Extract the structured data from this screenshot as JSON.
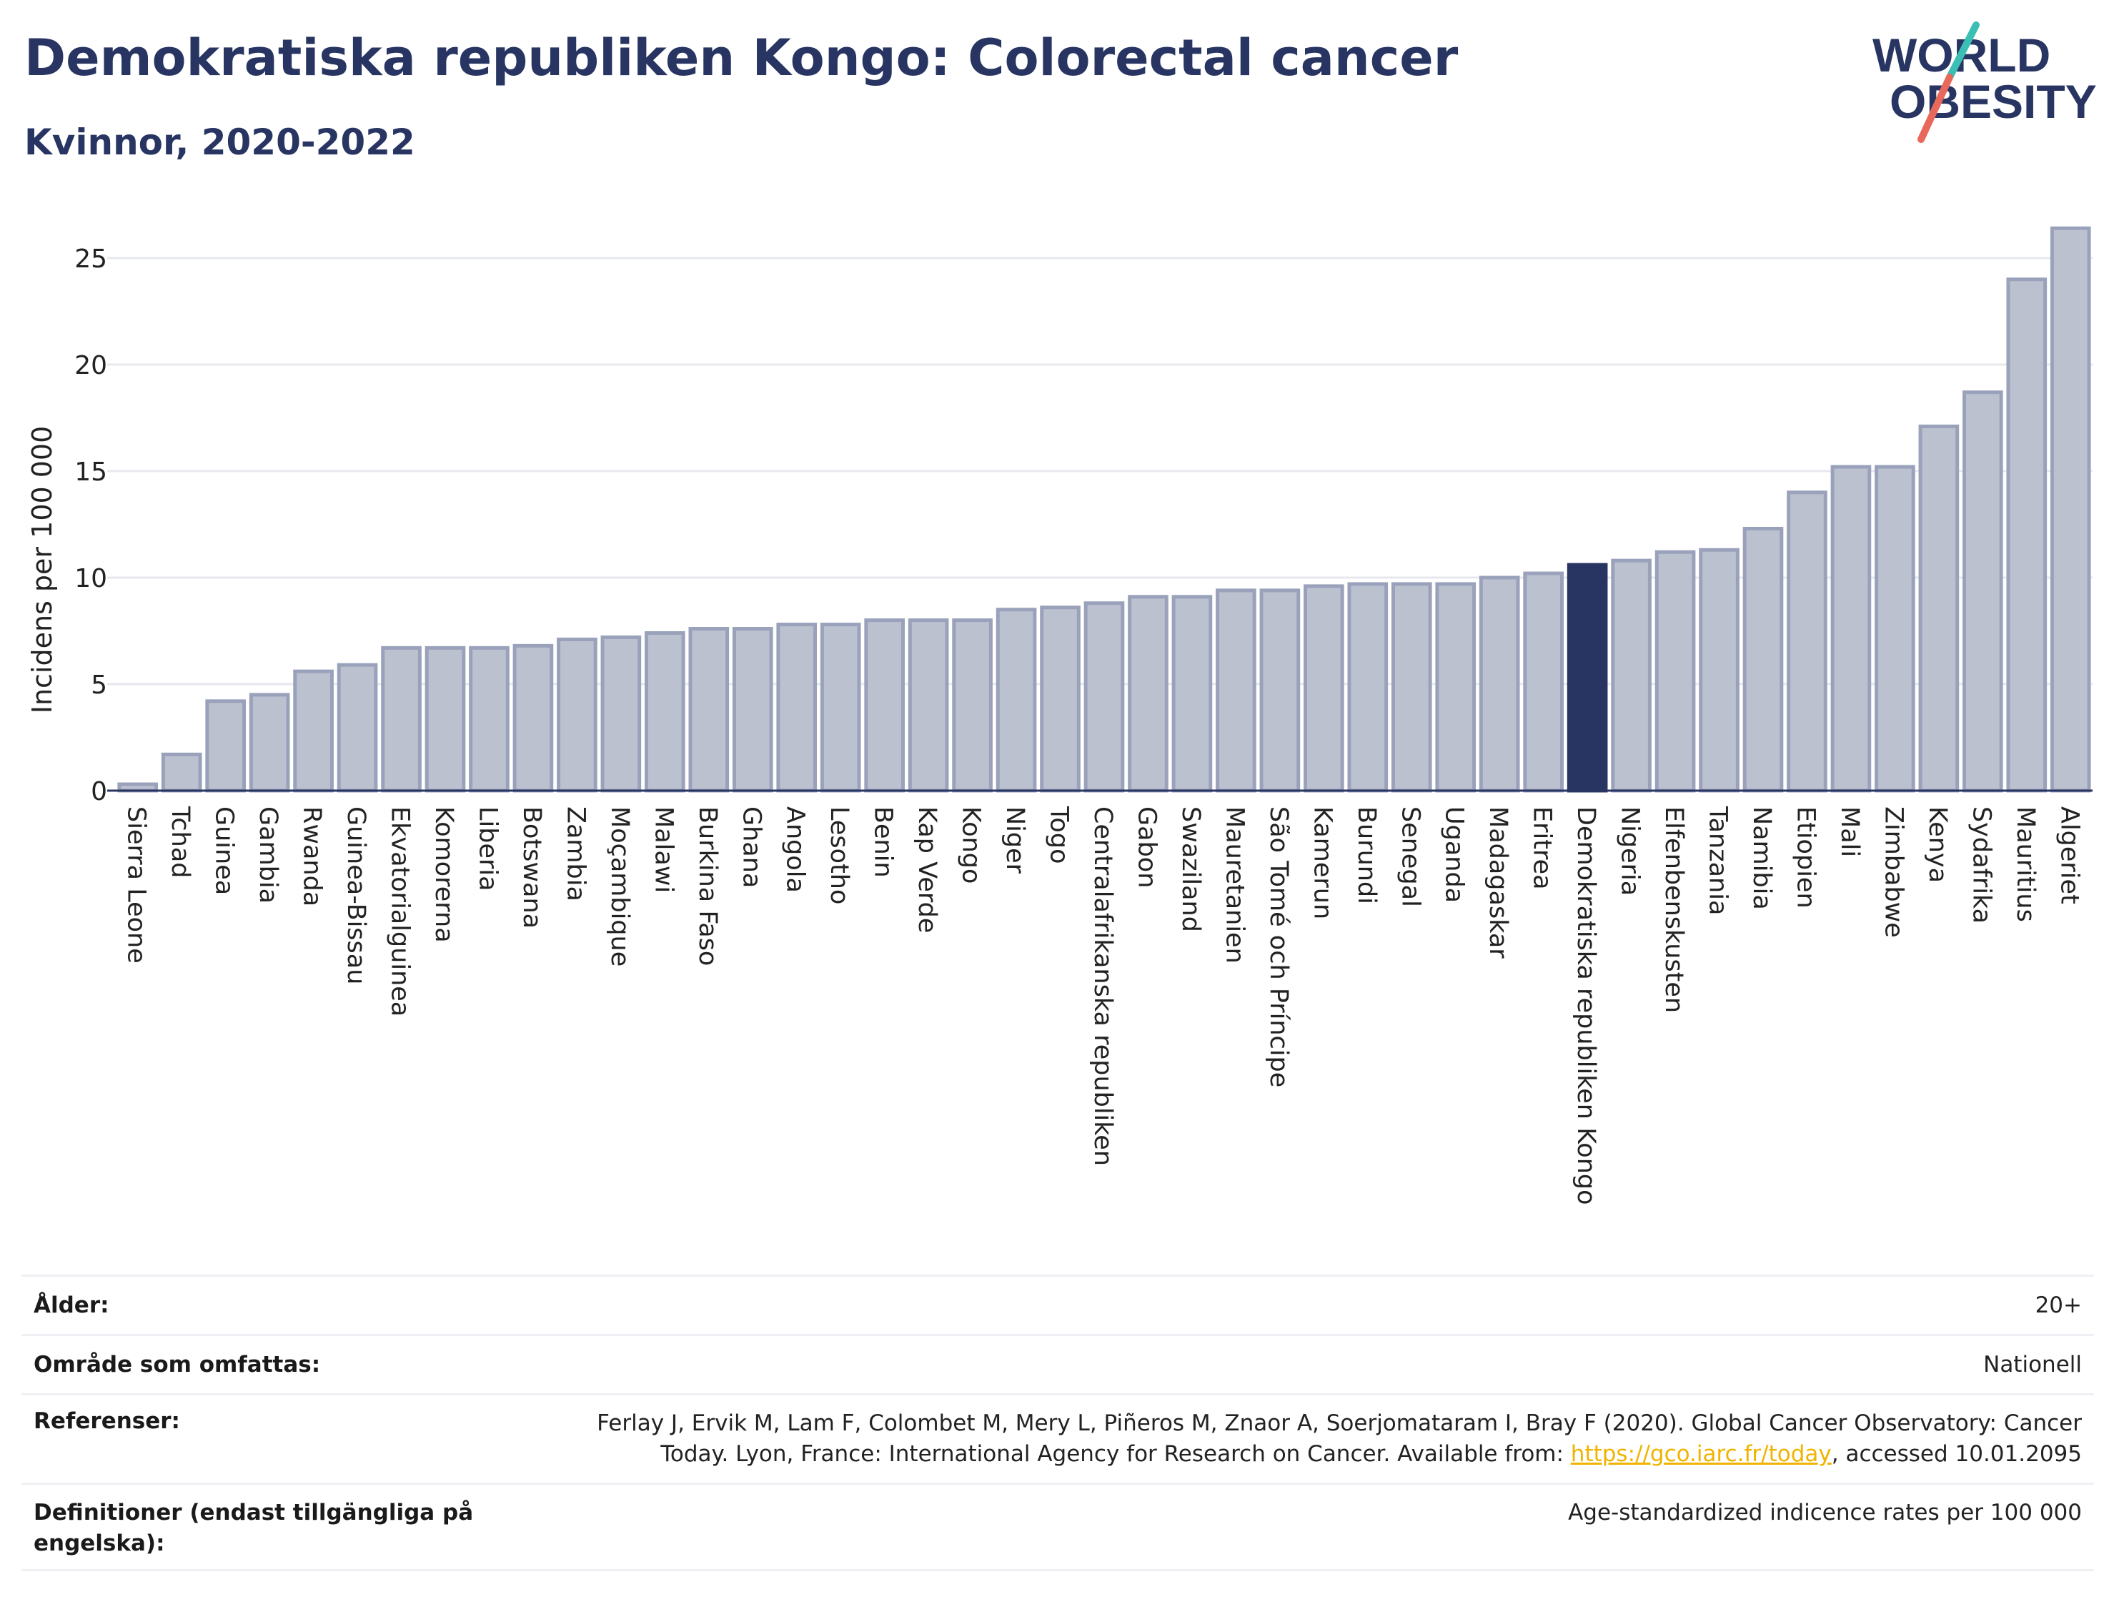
{
  "header": {
    "title": "Demokratiska republiken Kongo: Colorectal cancer",
    "subtitle": "Kvinnor, 2020-2022"
  },
  "logo": {
    "line1": "WORLD",
    "line2": "OBESITY",
    "accent_teal": "#3bbfb5",
    "accent_red": "#e8695c",
    "text_color": "#283562"
  },
  "chart_data": {
    "type": "bar",
    "ylabel": "Incidens per 100 000",
    "ylim": [
      0,
      27
    ],
    "yticks": [
      0,
      5,
      10,
      15,
      20,
      25
    ],
    "grid": true,
    "highlight": "Demokratiska republiken Kongo",
    "bar_color": "#bcc1d0",
    "bar_edge_color": "#9aa2bb",
    "highlight_color": "#283562",
    "categories": [
      "Sierra Leone",
      "Tchad",
      "Guinea",
      "Gambia",
      "Rwanda",
      "Guinea-Bissau",
      "Ekvatorialguinea",
      "Komorerna",
      "Liberia",
      "Botswana",
      "Zambia",
      "Moçambique",
      "Malawi",
      "Burkina Faso",
      "Ghana",
      "Angola",
      "Lesotho",
      "Benin",
      "Kap Verde",
      "Kongo",
      "Niger",
      "Togo",
      "Centralafrikanska republiken",
      "Gabon",
      "Swaziland",
      "Mauretanien",
      "São Tomé och Príncipe",
      "Kamerun",
      "Burundi",
      "Senegal",
      "Uganda",
      "Madagaskar",
      "Eritrea",
      "Demokratiska republiken Kongo",
      "Nigeria",
      "Elfenbenskusten",
      "Tanzania",
      "Namibia",
      "Etiopien",
      "Mali",
      "Zimbabwe",
      "Kenya",
      "Sydafrika",
      "Mauritius",
      "Algeriet"
    ],
    "values": [
      0.3,
      1.7,
      4.2,
      4.5,
      5.6,
      5.9,
      6.7,
      6.7,
      6.7,
      6.8,
      7.1,
      7.2,
      7.4,
      7.6,
      7.6,
      7.8,
      7.8,
      8.0,
      8.0,
      8.0,
      8.5,
      8.6,
      8.8,
      9.1,
      9.1,
      9.4,
      9.4,
      9.6,
      9.7,
      9.7,
      9.7,
      10.0,
      10.2,
      10.6,
      10.8,
      11.2,
      11.3,
      12.3,
      14.0,
      15.2,
      15.2,
      17.1,
      18.7,
      24.0,
      26.4
    ]
  },
  "footer": {
    "rows": [
      {
        "label": "Ålder:",
        "value": "20+"
      },
      {
        "label": "Område som omfattas:",
        "value": "Nationell"
      },
      {
        "label": "Referenser:",
        "value_pre": "Ferlay J, Ervik M, Lam F, Colombet M, Mery L, Piñeros M, Znaor A, Soerjomataram I, Bray F (2020). Global Cancer Observatory: Cancer Today. Lyon, France: International Agency for Research on Cancer. Available from: ",
        "link": "https://gco.iarc.fr/today",
        "value_post": ", accessed 10.01.2095"
      },
      {
        "label": "Definitioner (endast tillgängliga på engelska):",
        "value": "Age-standardized indicence rates per 100 000"
      }
    ]
  }
}
